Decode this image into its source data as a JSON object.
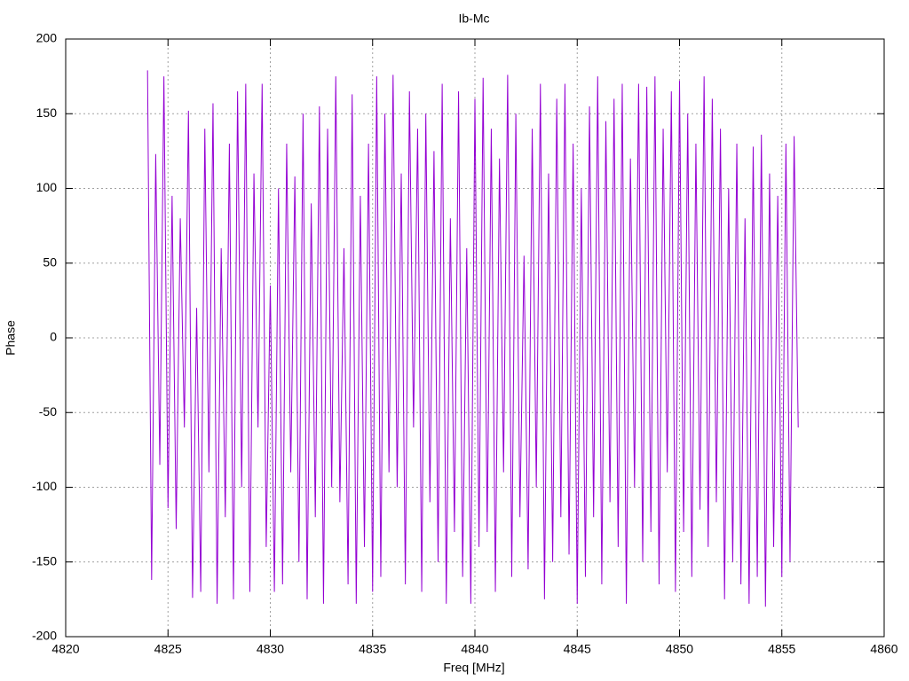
{
  "chart_data": {
    "type": "line",
    "title": "Ib-Mc",
    "xlabel": "Freq [MHz]",
    "ylabel": "Phase",
    "color": "#9400d3",
    "grid": true,
    "xlim": [
      4820,
      4860
    ],
    "xticks": [
      4820,
      4825,
      4830,
      4835,
      4840,
      4845,
      4850,
      4855,
      4860
    ],
    "ylim": [
      -200,
      200
    ],
    "yticks": [
      -200,
      -150,
      -100,
      -50,
      0,
      50,
      100,
      150,
      200
    ],
    "x": [
      4824,
      4824.2,
      4824.4,
      4824.6,
      4824.8,
      4825,
      4825.2,
      4825.4,
      4825.6,
      4825.8,
      4826,
      4826.2,
      4826.4,
      4826.6,
      4826.8,
      4827,
      4827.2,
      4827.4,
      4827.6,
      4827.8,
      4828,
      4828.2,
      4828.4,
      4828.6,
      4828.8,
      4829,
      4829.2,
      4829.4,
      4829.6,
      4829.8,
      4830,
      4830.2,
      4830.4,
      4830.6,
      4830.8,
      4831,
      4831.2,
      4831.4,
      4831.6,
      4831.8,
      4832,
      4832.2,
      4832.4,
      4832.6,
      4832.8,
      4833,
      4833.2,
      4833.4,
      4833.6,
      4833.8,
      4834,
      4834.2,
      4834.4,
      4834.6,
      4834.8,
      4835,
      4835.2,
      4835.4,
      4835.6,
      4835.8,
      4836,
      4836.2,
      4836.4,
      4836.6,
      4836.8,
      4837,
      4837.2,
      4837.4,
      4837.6,
      4837.8,
      4838,
      4838.2,
      4838.4,
      4838.6,
      4838.8,
      4839,
      4839.2,
      4839.4,
      4839.6,
      4839.8,
      4840,
      4840.2,
      4840.4,
      4840.6,
      4840.8,
      4841,
      4841.2,
      4841.4,
      4841.6,
      4841.8,
      4842,
      4842.2,
      4842.4,
      4842.6,
      4842.8,
      4843,
      4843.2,
      4843.4,
      4843.6,
      4843.8,
      4844,
      4844.2,
      4844.4,
      4844.6,
      4844.8,
      4845,
      4845.2,
      4845.4,
      4845.6,
      4845.8,
      4846,
      4846.2,
      4846.4,
      4846.6,
      4846.8,
      4847,
      4847.2,
      4847.4,
      4847.6,
      4847.8,
      4848,
      4848.2,
      4848.4,
      4848.6,
      4848.8,
      4849,
      4849.2,
      4849.4,
      4849.6,
      4849.8,
      4850,
      4850.2,
      4850.4,
      4850.6,
      4850.8,
      4851,
      4851.2,
      4851.4,
      4851.6,
      4851.8,
      4852,
      4852.2,
      4852.4,
      4852.6,
      4852.8,
      4853,
      4853.2,
      4853.4,
      4853.6,
      4853.8,
      4854,
      4854.2,
      4854.4,
      4854.6,
      4854.8,
      4855,
      4855.2,
      4855.4,
      4855.6,
      4855.8
    ],
    "values": [
      179,
      -162,
      123,
      -85,
      175,
      -114,
      95,
      -128,
      80,
      -60,
      152,
      -174,
      20,
      -170,
      140,
      -90,
      157,
      -178,
      60,
      -120,
      130,
      -175,
      165,
      -100,
      170,
      -170,
      110,
      -60,
      170,
      -140,
      35,
      -170,
      100,
      -165,
      130,
      -90,
      108,
      -150,
      150,
      -175,
      90,
      -120,
      155,
      -178,
      140,
      -100,
      175,
      -110,
      60,
      -165,
      163,
      -178,
      95,
      -140,
      130,
      -170,
      175,
      -160,
      150,
      -90,
      176,
      -100,
      110,
      -165,
      165,
      -60,
      140,
      -170,
      150,
      -110,
      125,
      -150,
      170,
      -178,
      80,
      -130,
      165,
      -160,
      60,
      -178,
      160,
      -140,
      174,
      -130,
      140,
      -170,
      120,
      -90,
      176,
      -160,
      150,
      -120,
      55,
      -155,
      140,
      -100,
      170,
      -175,
      110,
      -150,
      160,
      -120,
      170,
      -145,
      130,
      -178,
      100,
      -160,
      155,
      -120,
      175,
      -165,
      145,
      -110,
      160,
      -140,
      170,
      -178,
      120,
      -100,
      170,
      -150,
      168,
      -130,
      175,
      -165,
      140,
      -90,
      165,
      -170,
      172,
      -130,
      150,
      -160,
      130,
      -115,
      175,
      -140,
      160,
      -110,
      140,
      -175,
      100,
      -150,
      130,
      -165,
      80,
      -178,
      128,
      -160,
      136,
      -180,
      110,
      -140,
      95,
      -160,
      130,
      -150,
      135,
      -60
    ]
  }
}
